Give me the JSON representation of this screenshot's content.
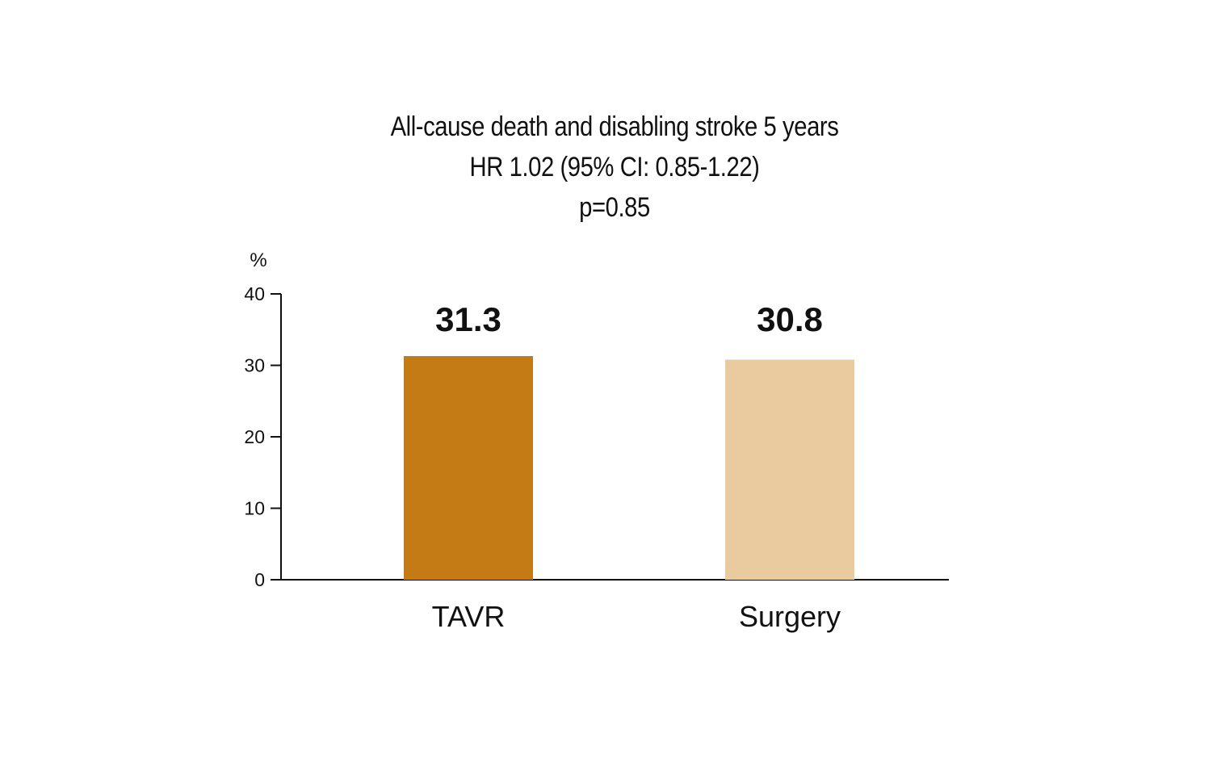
{
  "chart_data": {
    "type": "bar",
    "title_lines": [
      "All-cause death and disabling stroke 5 years",
      "HR 1.02 (95% CI: 0.85-1.22)",
      "p=0.85"
    ],
    "ylabel": "%",
    "xlabel": "",
    "ylim": [
      0,
      40
    ],
    "yticks": [
      0,
      10,
      20,
      30,
      40
    ],
    "ytick_labels": [
      "0",
      "10",
      "20",
      "30",
      "40"
    ],
    "categories": [
      "TAVR",
      "Surgery"
    ],
    "values": [
      31.3,
      30.8
    ],
    "value_labels": [
      "31.3",
      "30.8"
    ],
    "colors": [
      "#c57b15",
      "#e9cb9f"
    ],
    "grid": false,
    "legend": "none"
  }
}
